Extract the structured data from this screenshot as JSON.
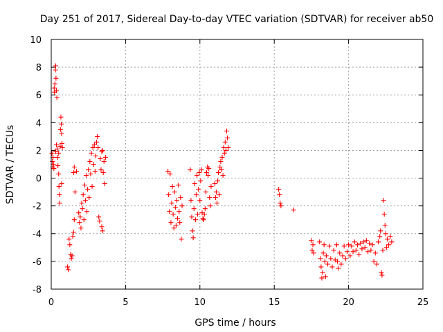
{
  "chart_data": {
    "type": "scatter",
    "title": "Day 251 of 2017, Sidereal Day-to-day VTEC variation (SDTVAR) for receiver ab50",
    "xlabel": "GPS time / hours",
    "ylabel": "SDTVAR / TECUs",
    "xlim": [
      0,
      25
    ],
    "ylim": [
      -8,
      10
    ],
    "xticks": [
      0,
      5,
      10,
      15,
      20,
      25
    ],
    "yticks": [
      -8,
      -6,
      -4,
      -2,
      0,
      2,
      4,
      6,
      8,
      10
    ],
    "grid": true,
    "marker": "+",
    "color": "#ff0000",
    "legend": "none",
    "series": [
      {
        "name": "SDTVAR",
        "points": [
          [
            0.05,
            1.8
          ],
          [
            0.08,
            1.2
          ],
          [
            0.1,
            0.8
          ],
          [
            0.12,
            1.5
          ],
          [
            0.15,
            1.0
          ],
          [
            0.18,
            0.7
          ],
          [
            0.2,
            6.5
          ],
          [
            0.22,
            6.2
          ],
          [
            0.25,
            6.8
          ],
          [
            0.28,
            7.8
          ],
          [
            0.3,
            8.1
          ],
          [
            0.32,
            7.2
          ],
          [
            0.35,
            6.3
          ],
          [
            0.38,
            5.8
          ],
          [
            0.3,
            1.9
          ],
          [
            0.35,
            2.4
          ],
          [
            0.4,
            2.1
          ],
          [
            0.42,
            1.5
          ],
          [
            0.45,
            0.9
          ],
          [
            0.5,
            1.8
          ],
          [
            0.5,
            0.3
          ],
          [
            0.52,
            -0.6
          ],
          [
            0.55,
            -1.2
          ],
          [
            0.58,
            -1.8
          ],
          [
            0.6,
            2.3
          ],
          [
            0.62,
            3.5
          ],
          [
            0.65,
            4.4
          ],
          [
            0.68,
            3.9
          ],
          [
            0.7,
            3.2
          ],
          [
            0.72,
            2.5
          ],
          [
            0.75,
            2.2
          ],
          [
            0.7,
            -0.4
          ],
          [
            1.1,
            -6.4
          ],
          [
            1.15,
            -6.6
          ],
          [
            1.2,
            -4.4
          ],
          [
            1.25,
            -4.8
          ],
          [
            1.3,
            -5.5
          ],
          [
            1.35,
            -5.8
          ],
          [
            1.4,
            -5.6
          ],
          [
            1.45,
            -4.2
          ],
          [
            1.5,
            -3.9
          ],
          [
            1.55,
            -3.0
          ],
          [
            1.5,
            0.4
          ],
          [
            1.55,
            0.8
          ],
          [
            1.6,
            -1.0
          ],
          [
            1.7,
            0.5
          ],
          [
            1.85,
            -2.5
          ],
          [
            1.9,
            -3.2
          ],
          [
            1.95,
            -2.8
          ],
          [
            2.0,
            -3.6
          ],
          [
            2.05,
            -1.8
          ],
          [
            2.1,
            -2.2
          ],
          [
            2.15,
            -1.2
          ],
          [
            2.2,
            -3.0
          ],
          [
            2.25,
            -0.5
          ],
          [
            2.3,
            -1.6
          ],
          [
            2.35,
            0.2
          ],
          [
            2.4,
            -2.4
          ],
          [
            2.45,
            -0.8
          ],
          [
            2.5,
            0.6
          ],
          [
            2.55,
            -1.4
          ],
          [
            2.6,
            1.2
          ],
          [
            2.65,
            0.3
          ],
          [
            2.7,
            1.8
          ],
          [
            2.75,
            -0.6
          ],
          [
            2.8,
            2.2
          ],
          [
            2.85,
            1.0
          ],
          [
            2.9,
            2.4
          ],
          [
            2.95,
            0.5
          ],
          [
            3.0,
            1.6
          ],
          [
            3.05,
            2.6
          ],
          [
            3.1,
            3.0
          ],
          [
            3.15,
            2.2
          ],
          [
            3.2,
            -2.8
          ],
          [
            3.25,
            -3.1
          ],
          [
            3.3,
            1.4
          ],
          [
            3.35,
            0.6
          ],
          [
            3.4,
            1.9
          ],
          [
            3.45,
            2.0
          ],
          [
            3.5,
            0.4
          ],
          [
            3.55,
            1.2
          ],
          [
            3.6,
            -0.4
          ],
          [
            3.65,
            1.5
          ],
          [
            3.4,
            -3.5
          ],
          [
            3.45,
            -3.8
          ],
          [
            7.85,
            0.5
          ],
          [
            7.9,
            -1.2
          ],
          [
            7.95,
            -2.4
          ],
          [
            8.0,
            0.3
          ],
          [
            8.05,
            -3.2
          ],
          [
            8.1,
            -1.8
          ],
          [
            8.15,
            -0.6
          ],
          [
            8.2,
            -2.6
          ],
          [
            8.25,
            -3.6
          ],
          [
            8.3,
            -1.0
          ],
          [
            8.35,
            -2.1
          ],
          [
            8.4,
            -3.4
          ],
          [
            8.45,
            -1.6
          ],
          [
            8.5,
            -2.9
          ],
          [
            8.55,
            -0.5
          ],
          [
            8.6,
            -2.4
          ],
          [
            8.65,
            -3.2
          ],
          [
            8.7,
            -1.4
          ],
          [
            8.75,
            -4.4
          ],
          [
            8.8,
            -2.0
          ],
          [
            9.35,
            0.6
          ],
          [
            9.4,
            -1.6
          ],
          [
            9.45,
            -2.8
          ],
          [
            9.5,
            -3.8
          ],
          [
            9.55,
            -4.3
          ],
          [
            9.6,
            -2.2
          ],
          [
            9.65,
            -0.4
          ],
          [
            9.7,
            -3.0
          ],
          [
            9.75,
            -1.2
          ],
          [
            9.8,
            0.2
          ],
          [
            9.85,
            -2.6
          ],
          [
            9.9,
            -0.8
          ],
          [
            9.95,
            0.4
          ],
          [
            10.0,
            -1.6
          ],
          [
            10.05,
            -0.2
          ],
          [
            10.1,
            0.6
          ],
          [
            10.15,
            -2.5
          ],
          [
            10.2,
            -2.9
          ],
          [
            10.25,
            -3.0
          ],
          [
            10.3,
            -2.6
          ],
          [
            10.35,
            -2.2
          ],
          [
            10.4,
            -1.0
          ],
          [
            10.45,
            0.4
          ],
          [
            10.5,
            0.8
          ],
          [
            10.55,
            0.2
          ],
          [
            10.6,
            0.7
          ],
          [
            10.65,
            -1.4
          ],
          [
            10.7,
            -2.0
          ],
          [
            10.75,
            -0.6
          ],
          [
            11.0,
            -0.4
          ],
          [
            11.05,
            -1.4
          ],
          [
            11.1,
            -1.0
          ],
          [
            11.15,
            -1.8
          ],
          [
            11.2,
            -0.2
          ],
          [
            11.25,
            0.4
          ],
          [
            11.3,
            -1.2
          ],
          [
            11.35,
            0.8
          ],
          [
            11.4,
            1.2
          ],
          [
            11.45,
            0.6
          ],
          [
            11.5,
            1.5
          ],
          [
            11.55,
            0.2
          ],
          [
            11.6,
            2.2
          ],
          [
            11.65,
            1.8
          ],
          [
            11.7,
            2.6
          ],
          [
            11.75,
            2.0
          ],
          [
            11.8,
            3.4
          ],
          [
            11.85,
            2.9
          ],
          [
            11.9,
            2.2
          ],
          [
            15.3,
            -0.8
          ],
          [
            15.35,
            -1.2
          ],
          [
            15.4,
            -1.8
          ],
          [
            15.45,
            -2.0
          ],
          [
            16.3,
            -2.3
          ],
          [
            17.5,
            -4.5
          ],
          [
            17.55,
            -5.2
          ],
          [
            17.6,
            -4.8
          ],
          [
            17.65,
            -5.4
          ],
          [
            18.1,
            -5.8
          ],
          [
            18.15,
            -6.4
          ],
          [
            18.2,
            -7.2
          ],
          [
            18.25,
            -6.8
          ],
          [
            18.3,
            -5.4
          ],
          [
            18.35,
            -4.8
          ],
          [
            18.4,
            -6.0
          ],
          [
            18.5,
            -5.6
          ],
          [
            18.6,
            -6.2
          ],
          [
            18.7,
            -4.9
          ],
          [
            18.8,
            -5.8
          ],
          [
            18.9,
            -6.4
          ],
          [
            19.0,
            -5.2
          ],
          [
            19.1,
            -5.9
          ],
          [
            19.2,
            -4.8
          ],
          [
            19.3,
            -6.5
          ],
          [
            19.4,
            -5.4
          ],
          [
            19.5,
            -6.2
          ],
          [
            19.6,
            -5.6
          ],
          [
            19.7,
            -4.9
          ],
          [
            19.8,
            -5.8
          ],
          [
            19.9,
            -5.3
          ],
          [
            20.0,
            -4.8
          ],
          [
            20.1,
            -5.6
          ],
          [
            20.2,
            -4.9
          ],
          [
            20.3,
            -5.3
          ],
          [
            20.4,
            -4.6
          ],
          [
            20.5,
            -5.2
          ],
          [
            20.6,
            -4.8
          ],
          [
            20.7,
            -5.5
          ],
          [
            20.8,
            -4.7
          ],
          [
            20.9,
            -5.1
          ],
          [
            21.0,
            -4.6
          ],
          [
            21.1,
            -5.0
          ],
          [
            21.2,
            -4.5
          ],
          [
            21.3,
            -5.3
          ],
          [
            21.4,
            -4.7
          ],
          [
            21.5,
            -5.2
          ],
          [
            21.6,
            -4.8
          ],
          [
            21.7,
            -6.0
          ],
          [
            21.8,
            -5.4
          ],
          [
            21.9,
            -6.2
          ],
          [
            22.0,
            -4.6
          ],
          [
            22.1,
            -4.2
          ],
          [
            22.15,
            -3.8
          ],
          [
            22.2,
            -6.8
          ],
          [
            22.25,
            -7.0
          ],
          [
            22.3,
            -5.2
          ],
          [
            22.35,
            -1.6
          ],
          [
            22.4,
            -2.6
          ],
          [
            22.45,
            -3.4
          ],
          [
            22.5,
            -4.0
          ],
          [
            22.55,
            -5.0
          ],
          [
            22.6,
            -4.4
          ],
          [
            22.7,
            -4.8
          ],
          [
            22.8,
            -4.2
          ],
          [
            22.9,
            -4.6
          ],
          [
            18.05,
            -4.6
          ],
          [
            18.45,
            -7.1
          ],
          [
            19.25,
            -6.0
          ]
        ]
      }
    ]
  }
}
